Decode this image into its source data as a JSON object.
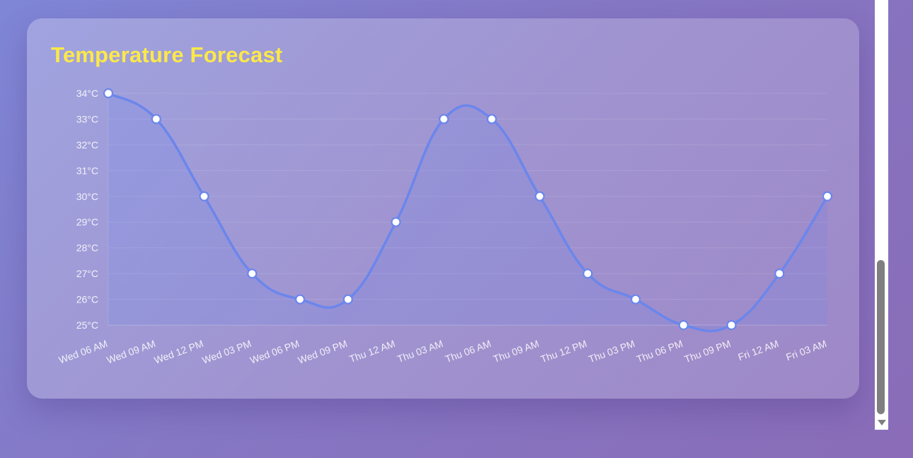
{
  "card": {
    "title": "Temperature Forecast"
  },
  "colors": {
    "title": "#fbe84a",
    "line": "#6b86ec",
    "fill": "rgba(107,134,236,0.18)",
    "point_fill": "#ffffff",
    "point_stroke": "#6b86ec",
    "grid": "rgba(255,255,255,0.12)",
    "tick_text": "rgba(255,255,255,0.85)"
  },
  "chart_data": {
    "type": "area",
    "title": "Temperature Forecast",
    "xlabel": "",
    "ylabel": "",
    "x": [
      "Wed 06 AM",
      "Wed 09 AM",
      "Wed 12 PM",
      "Wed 03 PM",
      "Wed 06 PM",
      "Wed 09 PM",
      "Thu 12 AM",
      "Thu 03 AM",
      "Thu 06 AM",
      "Thu 09 AM",
      "Thu 12 PM",
      "Thu 03 PM",
      "Thu 06 PM",
      "Thu 09 PM",
      "Fri 12 AM",
      "Fri 03 AM"
    ],
    "series": [
      {
        "values": [
          34,
          33,
          30,
          27,
          26,
          26,
          29,
          33,
          33,
          30,
          27,
          26,
          25,
          25,
          27,
          30
        ]
      }
    ],
    "ylim": [
      25,
      34
    ],
    "yticks": [
      "25°C",
      "26°C",
      "27°C",
      "28°C",
      "29°C",
      "30°C",
      "31°C",
      "32°C",
      "33°C",
      "34°C"
    ],
    "grid": true,
    "legend": "none"
  }
}
